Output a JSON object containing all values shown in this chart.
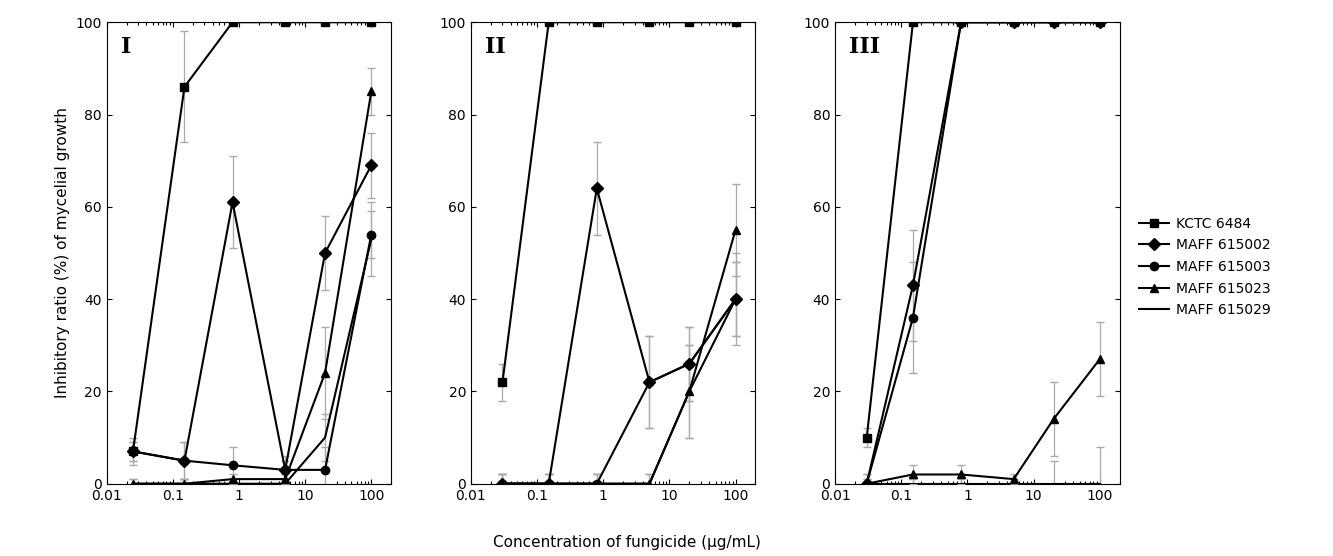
{
  "panels": [
    "I",
    "II",
    "III"
  ],
  "xlabel": "Concentration of fungicide (μg/mL)",
  "ylabel": "Inhibitory ratio (%) of mycelial growth",
  "markers": [
    "s",
    "D",
    "o",
    "^",
    "none"
  ],
  "legend_labels": [
    "KCTC 6484",
    "MAFF 615002",
    "MAFF 615003",
    "MAFF 615023",
    "MAFF 615029"
  ],
  "panel_data": {
    "I": {
      "x": [
        0.025,
        0.15,
        0.8,
        5,
        20,
        100
      ],
      "y": [
        [
          7,
          86,
          100,
          100,
          100,
          100
        ],
        [
          7,
          5,
          61,
          3,
          50,
          69
        ],
        [
          7,
          5,
          4,
          3,
          3,
          54
        ],
        [
          0,
          0,
          1,
          1,
          24,
          85
        ],
        [
          0,
          0,
          0,
          0,
          10,
          53
        ]
      ],
      "yerr": [
        [
          2,
          12,
          0,
          0,
          0,
          0
        ],
        [
          3,
          4,
          10,
          3,
          8,
          7
        ],
        [
          2,
          4,
          4,
          2,
          5,
          5
        ],
        [
          1,
          1,
          1,
          1,
          10,
          5
        ],
        [
          1,
          1,
          1,
          1,
          5,
          8
        ]
      ]
    },
    "II": {
      "x": [
        0.03,
        0.15,
        0.8,
        5,
        20,
        100
      ],
      "y": [
        [
          22,
          100,
          100,
          100,
          100,
          100
        ],
        [
          0,
          0,
          64,
          22,
          26,
          40
        ],
        [
          0,
          0,
          0,
          22,
          26,
          40
        ],
        [
          0,
          0,
          0,
          0,
          20,
          55
        ],
        [
          0,
          0,
          0,
          0,
          20,
          40
        ]
      ],
      "yerr": [
        [
          4,
          0,
          0,
          0,
          0,
          0
        ],
        [
          2,
          2,
          10,
          10,
          8,
          8
        ],
        [
          2,
          2,
          2,
          10,
          8,
          8
        ],
        [
          2,
          2,
          2,
          2,
          10,
          10
        ],
        [
          2,
          2,
          2,
          2,
          10,
          10
        ]
      ]
    },
    "III": {
      "x": [
        0.03,
        0.15,
        0.8,
        5,
        20,
        100
      ],
      "y": [
        [
          10,
          100,
          100,
          100,
          100,
          100
        ],
        [
          0,
          43,
          100,
          100,
          100,
          100
        ],
        [
          0,
          36,
          100,
          100,
          100,
          100
        ],
        [
          0,
          2,
          2,
          1,
          14,
          27
        ],
        [
          0,
          0,
          0,
          0,
          0,
          0
        ]
      ],
      "yerr": [
        [
          2,
          0,
          0,
          0,
          0,
          0
        ],
        [
          2,
          12,
          0,
          0,
          0,
          0
        ],
        [
          2,
          12,
          0,
          0,
          0,
          0
        ],
        [
          1,
          2,
          2,
          1,
          8,
          8
        ],
        [
          1,
          1,
          1,
          1,
          5,
          8
        ]
      ]
    }
  },
  "color": "black",
  "ecolor": "#aaaaaa",
  "markersize": 6,
  "linewidth": 1.5,
  "elinewidth": 0.9,
  "capsize": 3,
  "ylim": [
    0,
    100
  ],
  "xlim_I": [
    0.012,
    200
  ],
  "xlim_II": [
    0.012,
    200
  ],
  "xlim_III": [
    0.012,
    200
  ],
  "xticks": [
    0.01,
    0.1,
    1,
    10,
    100
  ],
  "xticklabels": [
    "0.01",
    "0.1",
    "1",
    "10",
    "100"
  ],
  "yticks": [
    0,
    20,
    40,
    60,
    80,
    100
  ],
  "panel_label_fontsize": 16,
  "axis_label_fontsize": 11,
  "tick_label_fontsize": 10,
  "legend_fontsize": 10
}
